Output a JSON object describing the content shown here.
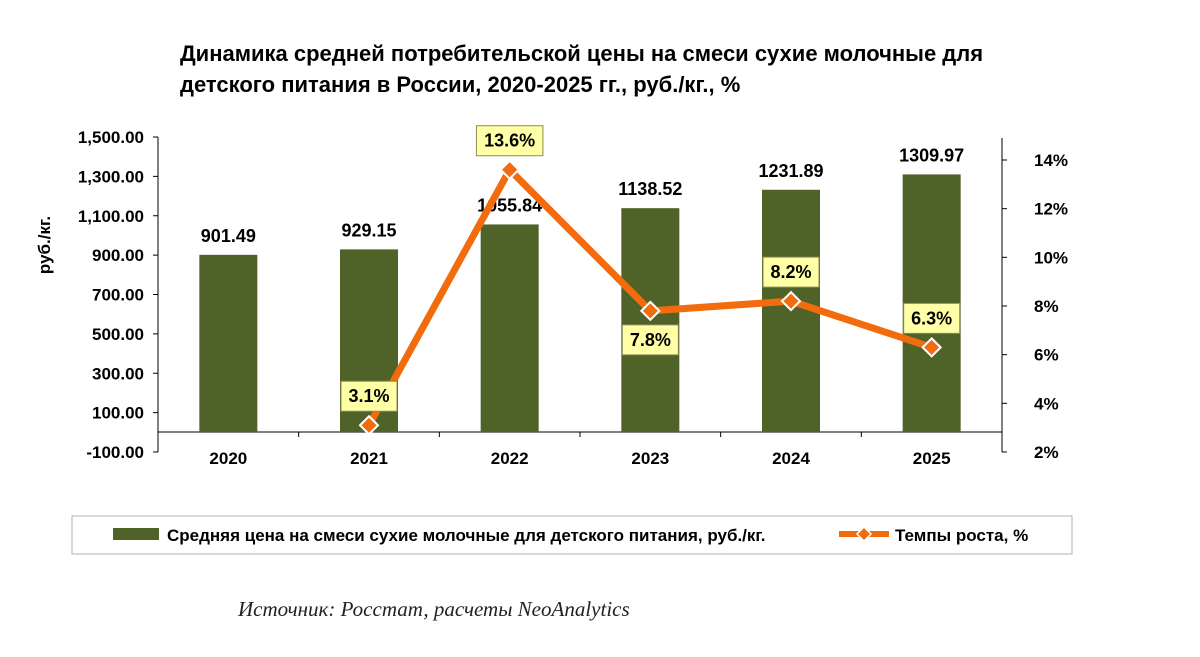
{
  "title_line1": "Динамика средней потребительской цены на смеси сухие молочные для",
  "title_line2": "детского питания в России, 2020-2025 гг., руб./кг., %",
  "source": "Источник: Росстат, расчеты NeoAnalytics",
  "chart_data": {
    "type": "bar",
    "categories": [
      "2020",
      "2021",
      "2022",
      "2023",
      "2024",
      "2025"
    ],
    "ylabel": "руб./кг.",
    "ylim": [
      -100,
      1500
    ],
    "y_ticks": [
      "1,500.00",
      "1,300.00",
      "1,100.00",
      "900.00",
      "700.00",
      "500.00",
      "300.00",
      "100.00",
      "-100.00"
    ],
    "y2lim": [
      2,
      15
    ],
    "y2_ticks": [
      "14%",
      "12%",
      "10%",
      "8%",
      "6%",
      "4%",
      "2%"
    ],
    "grid": false,
    "legend_position": "bottom",
    "series": [
      {
        "name": "Средняя цена на смеси сухие молочные для детского питания, руб./кг.",
        "type": "bar",
        "axis": "left",
        "color": "#4f6228",
        "values": [
          901.49,
          929.15,
          1055.84,
          1138.52,
          1231.89,
          1309.97
        ],
        "labels": [
          "901.49",
          "929.15",
          "1055.84",
          "1138.52",
          "1231.89",
          "1309.97"
        ]
      },
      {
        "name": "Темпы роста, %",
        "type": "line",
        "axis": "right",
        "color": "#f26c0d",
        "marker_color": "#f26c0d",
        "label_bg": "#ffffa6",
        "values": [
          null,
          3.1,
          13.6,
          7.8,
          8.2,
          6.3
        ],
        "labels": [
          "",
          "3.1%",
          "13.6%",
          "7.8%",
          "8.2%",
          "6.3%"
        ]
      }
    ]
  }
}
